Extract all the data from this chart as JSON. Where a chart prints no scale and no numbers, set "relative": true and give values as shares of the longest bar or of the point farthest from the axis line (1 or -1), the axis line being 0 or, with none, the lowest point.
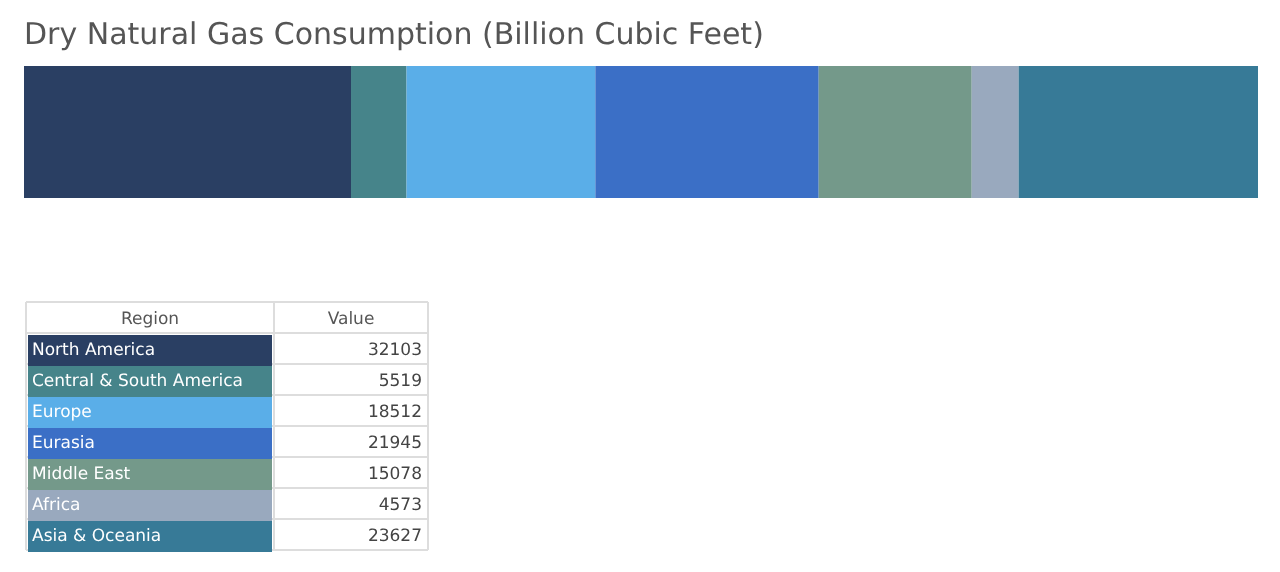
{
  "chart_data": [
    {
      "type": "bar",
      "title": "Dry Natural Gas Consumption (Billion Cubic Feet)",
      "orientation": "horizontal",
      "stacked": true,
      "relative": true,
      "categories": [
        null
      ],
      "series": [
        {
          "color": "#2a3f63",
          "values": [
            0.265
          ]
        },
        {
          "color": "#46848a",
          "values": [
            0.045
          ]
        },
        {
          "color": "#5aaee8",
          "values": [
            0.153
          ]
        },
        {
          "color": "#3b6fc6",
          "values": [
            0.181
          ]
        },
        {
          "color": "#74998a",
          "values": [
            0.124
          ]
        },
        {
          "color": "#99a9be",
          "values": [
            0.038
          ]
        },
        {
          "color": "#377a97",
          "values": [
            0.194
          ]
        }
      ]
    },
    {
      "type": "other",
      "annotations": [
        "Region",
        "Value"
      ],
      "data_labels": true,
      "categories": [
        "North America",
        "Central & South America",
        "Europe",
        "Eurasia",
        "Middle East",
        "Africa",
        "Asia & Oceania"
      ],
      "values": [
        32103,
        5519,
        18512,
        21945,
        15078,
        4573,
        23627
      ],
      "colors": [
        "#2a3f63",
        "#46848a",
        "#5aaee8",
        "#3b6fc6",
        "#74998a",
        "#99a9be",
        "#377a97"
      ]
    }
  ]
}
